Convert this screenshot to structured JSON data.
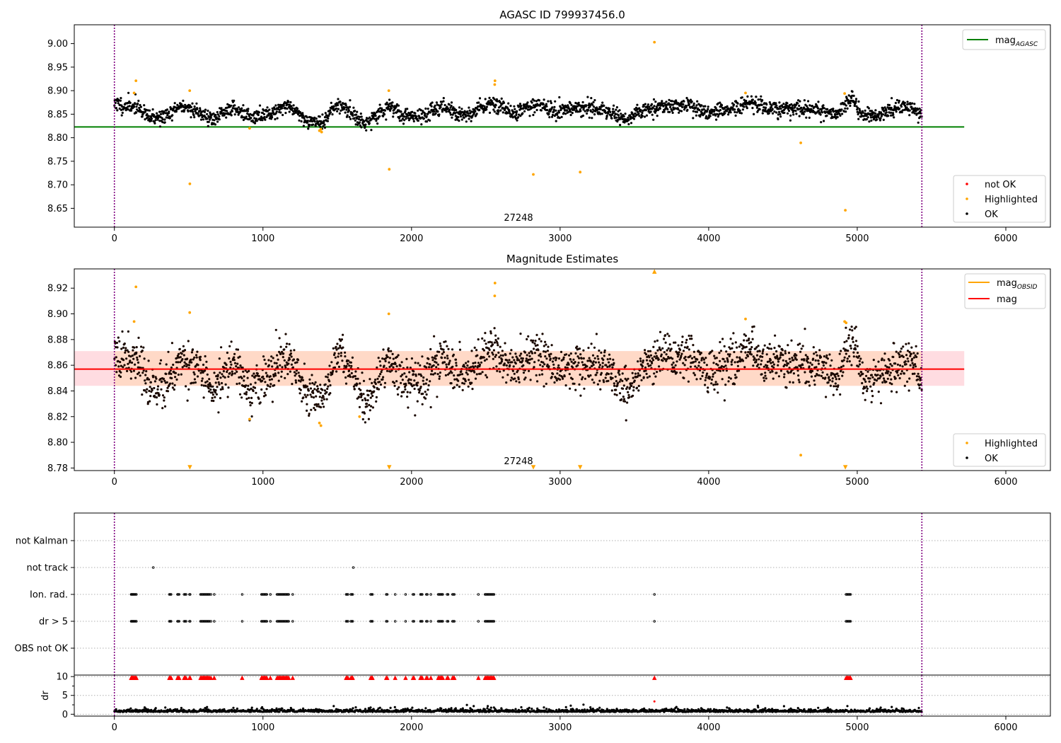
{
  "chart_data": [
    {
      "type": "scatter",
      "title": "AGASC ID 799937456.0",
      "xlabel": "",
      "ylabel": "",
      "xlim": [
        -270,
        6300
      ],
      "ylim": [
        8.61,
        9.04
      ],
      "xticks": [
        0,
        1000,
        2000,
        3000,
        4000,
        5000,
        6000
      ],
      "yticks": [
        8.65,
        8.7,
        8.75,
        8.8,
        8.85,
        8.9,
        8.95,
        9.0
      ],
      "ytick_labels": [
        "8.65",
        "8.70",
        "8.75",
        "8.80",
        "8.85",
        "8.90",
        "8.95",
        "9.00"
      ],
      "vlines": [
        0,
        5435
      ],
      "vline_color": "#800080",
      "annotation": {
        "text": "27248",
        "x": 2720,
        "y": 8.62
      },
      "hlines": [
        {
          "name": "mag_AGASC",
          "label_main": "mag",
          "label_sub": "AGASC",
          "y": 8.823,
          "x_range": [
            -270,
            5720
          ],
          "color": "#008000"
        }
      ],
      "legends": [
        {
          "position": "upper-right",
          "entries": [
            {
              "kind": "line",
              "label_main": "mag",
              "label_sub": "AGASC",
              "color": "#008000"
            }
          ]
        },
        {
          "position": "lower-right",
          "entries": [
            {
              "kind": "dot",
              "label": "not OK",
              "color": "#ff0000"
            },
            {
              "kind": "dot",
              "label": "Highlighted",
              "color": "#ffa500"
            },
            {
              "kind": "dot",
              "label": "OK",
              "color": "#000000"
            }
          ]
        }
      ],
      "series": [
        {
          "name": "OK",
          "color": "#000000",
          "model": {
            "x_start": 0,
            "x_end": 5435,
            "n": 2300,
            "base": 8.857,
            "noise": 0.008,
            "seed": 11,
            "wave_points": [
              [
                0,
                8.876
              ],
              [
                60,
                8.866
              ],
              [
                150,
                8.868
              ],
              [
                230,
                8.842
              ],
              [
                340,
                8.845
              ],
              [
                450,
                8.868
              ],
              [
                560,
                8.856
              ],
              [
                660,
                8.838
              ],
              [
                800,
                8.866
              ],
              [
                920,
                8.84
              ],
              [
                1050,
                8.853
              ],
              [
                1170,
                8.87
              ],
              [
                1300,
                8.836
              ],
              [
                1400,
                8.832
              ],
              [
                1500,
                8.872
              ],
              [
                1620,
                8.848
              ],
              [
                1680,
                8.828
              ],
              [
                1850,
                8.866
              ],
              [
                1960,
                8.845
              ],
              [
                2100,
                8.848
              ],
              [
                2200,
                8.868
              ],
              [
                2350,
                8.847
              ],
              [
                2540,
                8.875
              ],
              [
                2700,
                8.855
              ],
              [
                2850,
                8.872
              ],
              [
                2980,
                8.855
              ],
              [
                3100,
                8.862
              ],
              [
                3300,
                8.86
              ],
              [
                3450,
                8.838
              ],
              [
                3560,
                8.86
              ],
              [
                3700,
                8.868
              ],
              [
                3850,
                8.866
              ],
              [
                4000,
                8.855
              ],
              [
                4200,
                8.862
              ],
              [
                4280,
                8.876
              ],
              [
                4400,
                8.86
              ],
              [
                4600,
                8.862
              ],
              [
                4750,
                8.858
              ],
              [
                4850,
                8.848
              ],
              [
                4960,
                8.882
              ],
              [
                5050,
                8.845
              ],
              [
                5200,
                8.855
              ],
              [
                5350,
                8.868
              ],
              [
                5435,
                8.848
              ]
            ]
          }
        },
        {
          "name": "Highlighted",
          "color": "#ffa500",
          "points": [
            [
              133,
              8.895
            ],
            [
              145,
              8.921
            ],
            [
              507,
              8.9
            ],
            [
              508,
              8.702
            ],
            [
              910,
              8.82
            ],
            [
              1380,
              8.815
            ],
            [
              1390,
              8.818
            ],
            [
              1395,
              8.812
            ],
            [
              1847,
              8.9
            ],
            [
              1850,
              8.733
            ],
            [
              2560,
              8.913
            ],
            [
              2562,
              8.921
            ],
            [
              2820,
              8.722
            ],
            [
              3135,
              8.727
            ],
            [
              3635,
              9.003
            ],
            [
              4248,
              8.895
            ],
            [
              4620,
              8.789
            ],
            [
              4915,
              8.894
            ],
            [
              4920,
              8.646
            ]
          ]
        },
        {
          "name": "not OK",
          "color": "#ff0000",
          "points": []
        }
      ]
    },
    {
      "type": "scatter",
      "title": "Magnitude Estimates",
      "xlabel": "",
      "ylabel": "",
      "xlim": [
        -270,
        6300
      ],
      "ylim": [
        8.778,
        8.935
      ],
      "xticks": [
        0,
        1000,
        2000,
        3000,
        4000,
        5000,
        6000
      ],
      "yticks": [
        8.78,
        8.8,
        8.82,
        8.84,
        8.86,
        8.88,
        8.9,
        8.92
      ],
      "ytick_labels": [
        "8.78",
        "8.80",
        "8.82",
        "8.84",
        "8.86",
        "8.88",
        "8.90",
        "8.92"
      ],
      "vlines": [
        0,
        5435
      ],
      "vline_color": "#800080",
      "annotation": {
        "text": "27248",
        "x": 2720,
        "y": 8.7825
      },
      "band": {
        "y_low": 8.844,
        "y_high": 8.871,
        "x_range": [
          -270,
          5720
        ],
        "color": "#ffc0c8"
      },
      "band_inner": {
        "y_low": 8.844,
        "y_high": 8.871,
        "x_range": [
          0,
          5435
        ],
        "color": "#ffd8c4"
      },
      "hlines": [
        {
          "name": "mag",
          "y": 8.857,
          "x_range": [
            -270,
            5720
          ],
          "color": "#ff0000"
        }
      ],
      "legends": [
        {
          "position": "upper-right",
          "entries": [
            {
              "kind": "line",
              "label_main": "mag",
              "label_sub": "OBSID",
              "color": "#ffa500"
            },
            {
              "kind": "line",
              "label": "mag",
              "color": "#ff0000"
            }
          ]
        },
        {
          "position": "lower-right",
          "entries": [
            {
              "kind": "dot",
              "label": "Highlighted",
              "color": "#ffa500"
            },
            {
              "kind": "dot",
              "label": "OK",
              "color": "#000000"
            }
          ]
        }
      ],
      "series": [
        {
          "name": "OK",
          "color": "#000000",
          "model": "same_as_panel_1",
          "noise": 0.0085,
          "seed": 23
        },
        {
          "name": "Highlighted",
          "color": "#ffa500",
          "points": [
            [
              133,
              8.894
            ],
            [
              145,
              8.921
            ],
            [
              507,
              8.901
            ],
            [
              910,
              8.818
            ],
            [
              1380,
              8.815
            ],
            [
              1390,
              8.813
            ],
            [
              1650,
              8.82
            ],
            [
              1847,
              8.9
            ],
            [
              2560,
              8.914
            ],
            [
              2562,
              8.924
            ],
            [
              4248,
              8.896
            ],
            [
              4620,
              8.79
            ],
            [
              4915,
              8.894
            ],
            [
              4925,
              8.893
            ]
          ]
        },
        {
          "name": "Highlighted (off-scale high)",
          "color": "#ffa500",
          "marker": "triangle-up",
          "points": [
            [
              3635,
              8.933
            ]
          ]
        },
        {
          "name": "Highlighted (off-scale low)",
          "color": "#ffa500",
          "marker": "triangle-down",
          "points": [
            [
              508,
              8.7805
            ],
            [
              1850,
              8.7805
            ],
            [
              2820,
              8.7805
            ],
            [
              3135,
              8.7805
            ],
            [
              4920,
              8.7805
            ]
          ]
        }
      ]
    },
    {
      "type": "scatter",
      "title": "",
      "xlabel": "",
      "ylabel": "",
      "xlim": [
        -270,
        6300
      ],
      "xticks": [],
      "categories": [
        "OBS not OK",
        "dr > 5",
        "Ion. rad.",
        "not track",
        "not Kalman"
      ],
      "vlines": [
        0,
        5435
      ],
      "vline_color": "#800080",
      "series": [
        {
          "name": "not track",
          "color": "#000000",
          "points_x": [
            262,
            1608
          ]
        },
        {
          "name": "Ion. rad.",
          "color": "#000000",
          "points_x": [
            113,
            117,
            122,
            126,
            131,
            136,
            142,
            148,
            370,
            376,
            382,
            425,
            430,
            436,
            470,
            476,
            482,
            506,
            510,
            580,
            586,
            592,
            598,
            604,
            610,
            616,
            622,
            628,
            634,
            640,
            650,
            672,
            860,
            990,
            996,
            1002,
            1008,
            1014,
            1020,
            1026,
            1050,
            1095,
            1101,
            1107,
            1113,
            1119,
            1125,
            1131,
            1137,
            1143,
            1149,
            1155,
            1161,
            1167,
            1173,
            1200,
            1560,
            1566,
            1572,
            1592,
            1598,
            1604,
            1725,
            1731,
            1737,
            1830,
            1836,
            1890,
            1960,
            2010,
            2016,
            2060,
            2066,
            2072,
            2100,
            2106,
            2130,
            2180,
            2186,
            2192,
            2198,
            2204,
            2210,
            2240,
            2246,
            2276,
            2282,
            2288,
            2450,
            2495,
            2501,
            2507,
            2513,
            2519,
            2525,
            2531,
            2537,
            2543,
            2549,
            2555,
            3635,
            4925,
            4931,
            4937,
            4943,
            4949,
            4955
          ]
        },
        {
          "name": "dr > 5",
          "color": "#000000",
          "points_x": [
            113,
            117,
            122,
            126,
            131,
            136,
            142,
            148,
            370,
            376,
            382,
            425,
            430,
            436,
            470,
            476,
            482,
            506,
            510,
            580,
            586,
            592,
            598,
            604,
            610,
            616,
            622,
            628,
            634,
            640,
            650,
            672,
            860,
            990,
            996,
            1002,
            1008,
            1014,
            1020,
            1026,
            1050,
            1095,
            1101,
            1107,
            1113,
            1119,
            1125,
            1131,
            1137,
            1143,
            1149,
            1155,
            1161,
            1167,
            1173,
            1200,
            1560,
            1566,
            1572,
            1592,
            1598,
            1604,
            1725,
            1731,
            1737,
            1830,
            1836,
            1890,
            1960,
            2010,
            2016,
            2060,
            2066,
            2072,
            2100,
            2106,
            2130,
            2180,
            2186,
            2192,
            2198,
            2204,
            2210,
            2240,
            2246,
            2276,
            2282,
            2288,
            2450,
            2495,
            2501,
            2507,
            2513,
            2519,
            2525,
            2531,
            2537,
            2543,
            2549,
            2555,
            3635,
            4925,
            4931,
            4937,
            4943,
            4949,
            4955
          ]
        }
      ]
    },
    {
      "type": "scatter",
      "title": "",
      "xlabel": "",
      "ylabel": "dr",
      "xlim": [
        -270,
        6300
      ],
      "ylim": [
        -0.5,
        10.4
      ],
      "xticks": [
        0,
        1000,
        2000,
        3000,
        4000,
        5000,
        6000
      ],
      "yticks": [
        0,
        5,
        10
      ],
      "ytick_labels": [
        "0",
        "5",
        "10"
      ],
      "vlines": [
        0,
        5435
      ],
      "vline_color": "#800080",
      "series": [
        {
          "name": "OK",
          "color": "#000000",
          "model": {
            "x_start": 0,
            "x_end": 5435,
            "n": 1700,
            "base": 0.6,
            "noise": 0.35,
            "seed": 37
          }
        },
        {
          "name": "not OK (clipped at 10)",
          "color": "#ff0000",
          "marker": "triangle-up",
          "y": 9.7,
          "points_x": "same_as_dr_gt_5"
        },
        {
          "name": "not OK",
          "color": "#ff0000",
          "points": [
            [
              3635,
              3.4
            ]
          ]
        }
      ]
    }
  ]
}
